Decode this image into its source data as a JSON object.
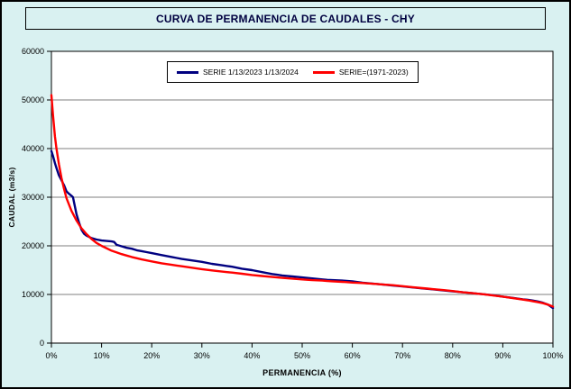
{
  "chart_data": {
    "type": "line",
    "title": "CURVA DE PERMANENCIA DE CAUDALES - CHY",
    "xlabel": "PERMANENCIA (%)",
    "ylabel": "CAUDAL (m3/s)",
    "xlim": [
      0,
      100
    ],
    "ylim": [
      0,
      60000
    ],
    "x_ticks": [
      "0%",
      "10%",
      "20%",
      "30%",
      "40%",
      "50%",
      "60%",
      "70%",
      "80%",
      "90%",
      "100%"
    ],
    "y_ticks": [
      "0",
      "10000",
      "20000",
      "30000",
      "40000",
      "50000",
      "60000"
    ],
    "grid": "horizontal",
    "legend_position": "top-center-inside",
    "colors": {
      "background": "#d9f1f1",
      "plot_bg": "#ffffff",
      "frame": "#000000",
      "grid": "#000000"
    },
    "series": [
      {
        "name": "SERIE 1/13/2023 1/13/2024",
        "color": "#000080",
        "width": 2.4,
        "x": [
          0,
          0.3,
          0.7,
          1,
          1.5,
          2,
          2.5,
          3,
          3.5,
          4,
          4.3,
          5,
          5.5,
          6,
          6.5,
          7,
          8,
          9,
          10,
          11,
          12,
          12.5,
          13,
          14,
          15,
          16,
          17,
          18,
          19,
          20,
          22,
          24,
          25,
          26,
          28,
          30,
          32,
          34,
          35,
          36,
          38,
          40,
          42,
          44,
          45,
          46,
          48,
          50,
          52,
          54,
          55,
          56,
          58,
          60,
          62,
          64,
          65,
          66,
          68,
          70,
          72,
          74,
          75,
          76,
          78,
          80,
          82,
          84,
          85,
          86,
          88,
          90,
          92,
          94,
          95,
          96,
          97,
          98,
          99,
          100
        ],
        "y": [
          39500,
          38500,
          37000,
          36000,
          34500,
          33500,
          32500,
          31200,
          30700,
          30300,
          30000,
          26500,
          24800,
          23300,
          22500,
          22100,
          21600,
          21300,
          21100,
          21000,
          20900,
          20800,
          20200,
          19900,
          19600,
          19400,
          19100,
          18900,
          18700,
          18500,
          18100,
          17700,
          17500,
          17300,
          17000,
          16700,
          16300,
          16000,
          15850,
          15700,
          15300,
          15000,
          14600,
          14200,
          14050,
          13900,
          13700,
          13500,
          13300,
          13100,
          13000,
          12950,
          12850,
          12700,
          12400,
          12250,
          12150,
          12050,
          11850,
          11650,
          11450,
          11250,
          11150,
          11050,
          10850,
          10650,
          10450,
          10250,
          10150,
          10050,
          9850,
          9550,
          9300,
          9000,
          8900,
          8750,
          8550,
          8300,
          7900,
          7200
        ]
      },
      {
        "name": "SERIE=(1971-2023)",
        "color": "#ff0000",
        "width": 2.4,
        "x": [
          0,
          0.3,
          0.7,
          1,
          1.5,
          2,
          2.5,
          3,
          4,
          5,
          6,
          7,
          8,
          9,
          10,
          12,
          14,
          15,
          16,
          18,
          20,
          22,
          24,
          25,
          26,
          28,
          30,
          32,
          34,
          35,
          36,
          38,
          40,
          42,
          44,
          45,
          46,
          48,
          50,
          52,
          54,
          55,
          56,
          58,
          60,
          62,
          64,
          65,
          66,
          68,
          70,
          72,
          74,
          75,
          76,
          78,
          80,
          82,
          84,
          85,
          86,
          88,
          90,
          92,
          94,
          95,
          96,
          97,
          98,
          99,
          100
        ],
        "y": [
          51000,
          47000,
          42500,
          40000,
          36800,
          34000,
          31800,
          29800,
          27200,
          25200,
          23600,
          22400,
          21400,
          20600,
          20000,
          19000,
          18300,
          18000,
          17700,
          17200,
          16800,
          16400,
          16100,
          15950,
          15800,
          15500,
          15200,
          14950,
          14700,
          14600,
          14500,
          14250,
          14000,
          13800,
          13600,
          13500,
          13400,
          13250,
          13100,
          12950,
          12850,
          12750,
          12700,
          12600,
          12450,
          12350,
          12200,
          12150,
          12050,
          11900,
          11700,
          11500,
          11300,
          11200,
          11100,
          10900,
          10700,
          10450,
          10250,
          10150,
          10050,
          9800,
          9550,
          9250,
          8950,
          8800,
          8600,
          8400,
          8200,
          7900,
          7500
        ]
      }
    ]
  }
}
